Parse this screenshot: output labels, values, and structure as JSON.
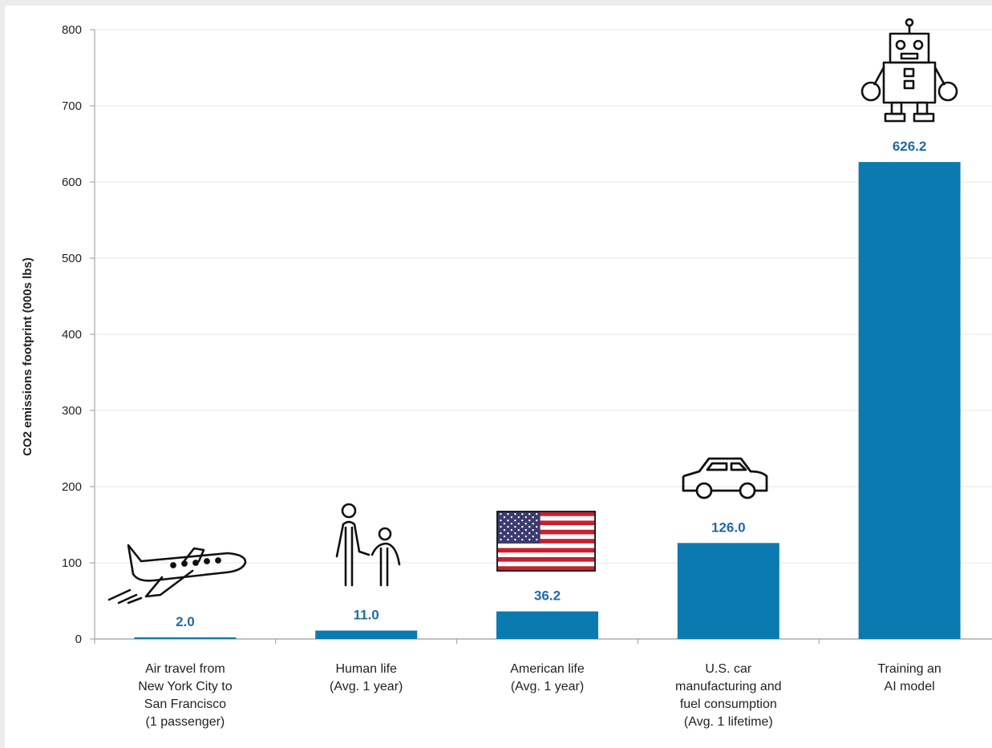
{
  "chart_data": {
    "type": "bar",
    "title": "",
    "ylabel": "CO2 emissions footprint (000s lbs)",
    "xlabel": "",
    "ylim": [
      0,
      800
    ],
    "yticks": [
      0,
      100,
      200,
      300,
      400,
      500,
      600,
      700,
      800
    ],
    "grid": true,
    "categories": [
      [
        "Air travel from",
        "New York City to",
        "San Francisco",
        "(1 passenger)"
      ],
      [
        "Human life",
        "(Avg. 1 year)"
      ],
      [
        "American life",
        "(Avg. 1 year)"
      ],
      [
        "U.S. car",
        "manufacturing and",
        "fuel consumption",
        "(Avg. 1 lifetime)"
      ],
      [
        "Training an",
        "AI model"
      ]
    ],
    "values": [
      2.0,
      11.0,
      36.2,
      126.0,
      626.2
    ],
    "value_labels": [
      "2.0",
      "11.0",
      "36.2",
      "126.0",
      "626.2"
    ],
    "icons": [
      "airplane-icon",
      "parent-child-icon",
      "us-flag-icon",
      "car-icon",
      "robot-icon"
    ]
  },
  "colors": {
    "bar": "#0a7ab0",
    "value_label": "#1f6aa5",
    "grid": "#e6e6e6",
    "axis": "#9a9a9a",
    "icon_stroke": "#111111",
    "flag_red": "#c8202f",
    "flag_blue": "#3c3b6e"
  }
}
